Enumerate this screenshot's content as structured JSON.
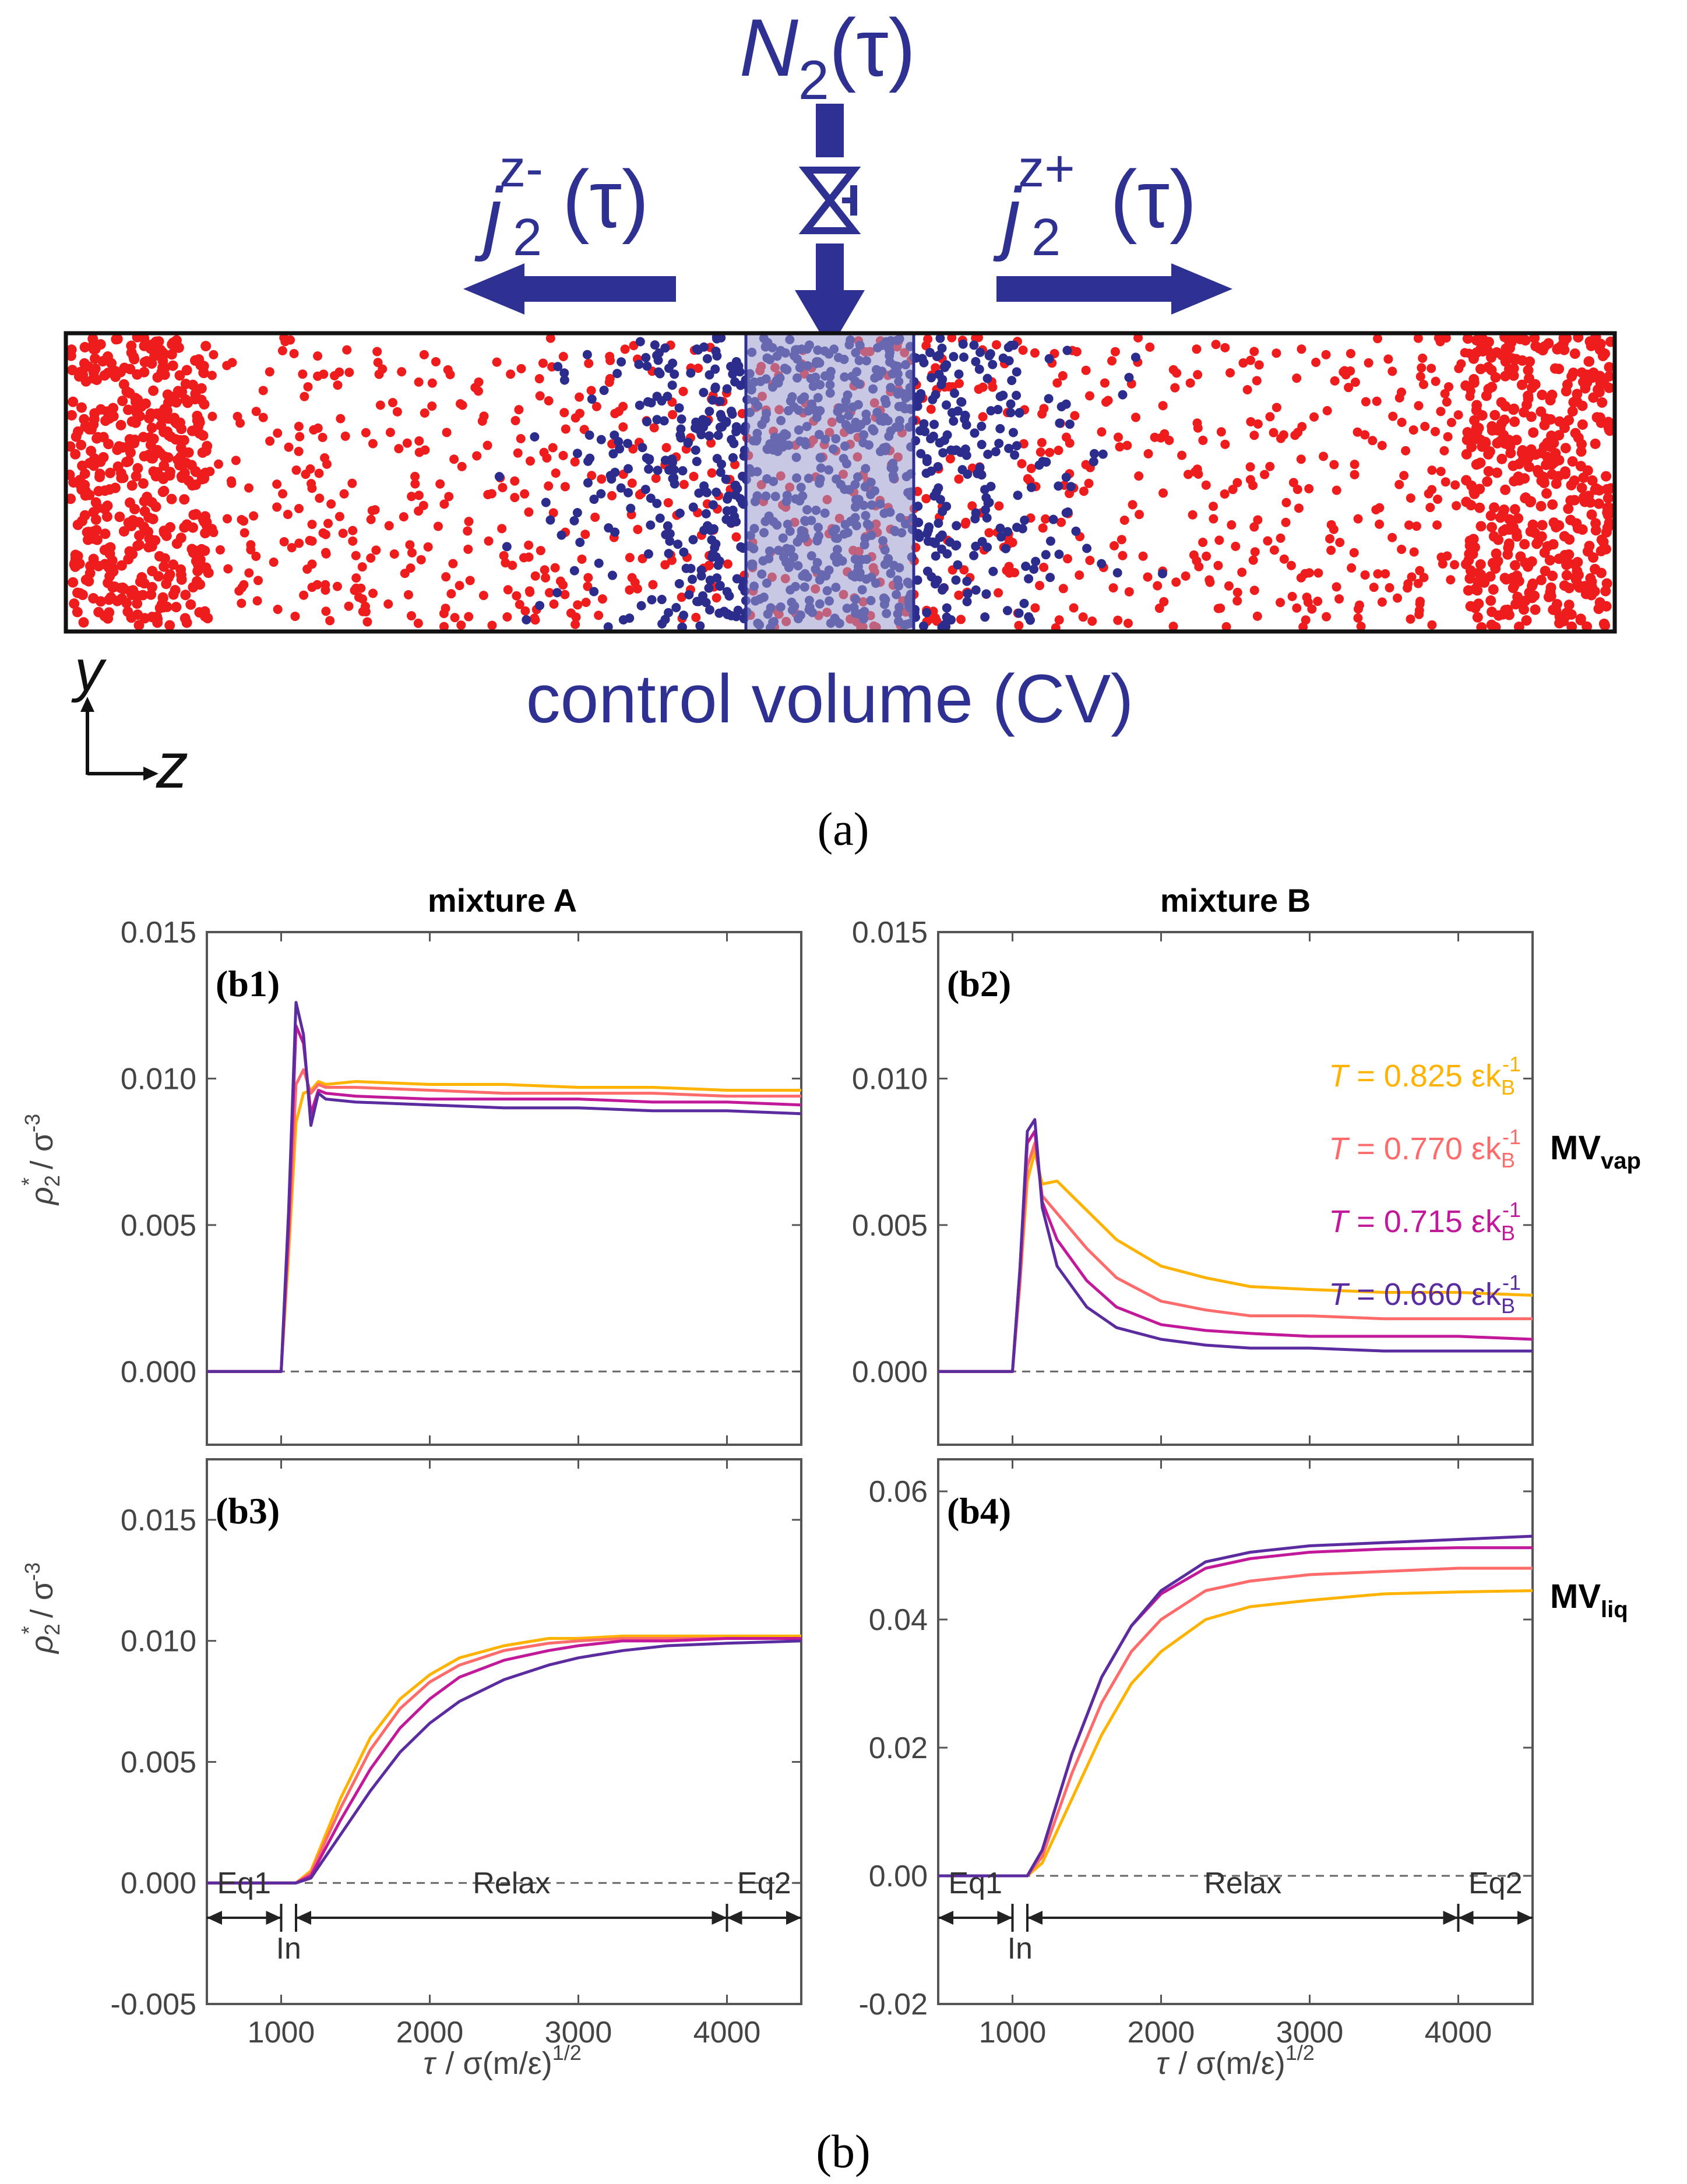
{
  "panel_a": {
    "top_label_main": "N",
    "top_label_sub": "2",
    "top_label_arg": "(τ)",
    "left_flux_main": "j",
    "left_flux_sub": "2",
    "left_flux_sup": "z-",
    "left_flux_arg": "(τ)",
    "right_flux_main": "j",
    "right_flux_sub": "2",
    "right_flux_sup": "z+",
    "right_flux_arg": "(τ)",
    "cv_label": "control volume (CV)",
    "axis_y": "y",
    "axis_z": "z",
    "caption": "(a)",
    "colors": {
      "particle_red": "#ee1c1c",
      "particle_blue": "#2c2c8c",
      "arrow_blue": "#2e3192",
      "cv_fill": "#9a9ad0"
    }
  },
  "panel_b": {
    "caption": "(b)",
    "col_headers": [
      "mixture A",
      "mixture B"
    ],
    "row_labels": [
      {
        "main": "MV",
        "sub": "vap"
      },
      {
        "main": "MV",
        "sub": "liq"
      }
    ],
    "ylabel_main": "ρ",
    "ylabel_sub": "2",
    "ylabel_star": "*",
    "ylabel_unit": "/ σ",
    "ylabel_exp": "-3",
    "xlabel_main": "τ",
    "xlabel_unit": "/ σ(m/ε)",
    "xlabel_exp": "1/2",
    "phases": {
      "eq1": "Eq1",
      "in": "In",
      "relax": "Relax",
      "eq2": "Eq2"
    }
  },
  "chart_data": [
    {
      "id": "b1",
      "label": "(b1)",
      "type": "line",
      "xlim": [
        500,
        4500
      ],
      "ylim": [
        -0.0025,
        0.015
      ],
      "xticks": [
        1000,
        2000,
        3000,
        4000
      ],
      "yticks": [
        0.0,
        0.005,
        0.01,
        0.015
      ],
      "ytick_labels": [
        "0.000",
        "0.005",
        "0.010",
        "0.015"
      ],
      "show_xtick_labels": false,
      "show_phases": false,
      "dashed_zero": true,
      "series": [
        {
          "color": "#ffb300",
          "x": [
            500,
            1000,
            1050,
            1100,
            1150,
            1200,
            1250,
            1300,
            1500,
            2000,
            2500,
            3000,
            3500,
            4000,
            4500
          ],
          "y": [
            0,
            0,
            0.004,
            0.0085,
            0.0095,
            0.0096,
            0.0099,
            0.0098,
            0.0099,
            0.0098,
            0.0098,
            0.0097,
            0.0097,
            0.0096,
            0.0096
          ]
        },
        {
          "color": "#ff6a6a",
          "x": [
            500,
            1000,
            1050,
            1100,
            1150,
            1200,
            1250,
            1300,
            1500,
            2000,
            2500,
            3000,
            3500,
            4000,
            4500
          ],
          "y": [
            0,
            0,
            0.0045,
            0.0098,
            0.0103,
            0.0095,
            0.0098,
            0.0097,
            0.0097,
            0.0096,
            0.0095,
            0.0095,
            0.0095,
            0.0094,
            0.0094
          ]
        },
        {
          "color": "#c2189a",
          "x": [
            500,
            1000,
            1050,
            1100,
            1150,
            1200,
            1250,
            1300,
            1500,
            2000,
            2500,
            3000,
            3500,
            4000,
            4500
          ],
          "y": [
            0,
            0,
            0.005,
            0.0118,
            0.0112,
            0.0088,
            0.0096,
            0.0095,
            0.0094,
            0.0093,
            0.0093,
            0.0093,
            0.0092,
            0.0092,
            0.0091
          ]
        },
        {
          "color": "#5a2ca0",
          "x": [
            500,
            1000,
            1050,
            1100,
            1150,
            1200,
            1250,
            1300,
            1500,
            2000,
            2500,
            3000,
            3500,
            4000,
            4500
          ],
          "y": [
            0,
            0,
            0.0055,
            0.0126,
            0.0115,
            0.0084,
            0.0095,
            0.0093,
            0.0092,
            0.0091,
            0.009,
            0.009,
            0.0089,
            0.0089,
            0.0088
          ]
        }
      ]
    },
    {
      "id": "b2",
      "label": "(b2)",
      "type": "line",
      "xlim": [
        500,
        4500
      ],
      "ylim": [
        -0.0025,
        0.015
      ],
      "xticks": [
        1000,
        2000,
        3000,
        4000
      ],
      "yticks": [
        0.0,
        0.005,
        0.01,
        0.015
      ],
      "ytick_labels": [
        "0.000",
        "0.005",
        "0.010",
        "0.015"
      ],
      "show_xtick_labels": false,
      "show_phases": false,
      "dashed_zero": true,
      "legend": {
        "placement": "top-right",
        "entries": [
          {
            "color": "#ffb300",
            "T": "T",
            "text": " = 0.825 εk",
            "sub": "B",
            "sup": "-1"
          },
          {
            "color": "#ff6a6a",
            "T": "T",
            "text": " = 0.770 εk",
            "sub": "B",
            "sup": "-1"
          },
          {
            "color": "#c2189a",
            "T": "T",
            "text": " = 0.715 εk",
            "sub": "B",
            "sup": "-1"
          },
          {
            "color": "#5a2ca0",
            "T": "T",
            "text": " = 0.660 εk",
            "sub": "B",
            "sup": "-1"
          }
        ]
      },
      "series": [
        {
          "color": "#ffb300",
          "x": [
            500,
            1000,
            1050,
            1100,
            1150,
            1200,
            1300,
            1500,
            1700,
            2000,
            2300,
            2600,
            3000,
            3500,
            4000,
            4500
          ],
          "y": [
            0,
            0,
            0.003,
            0.0065,
            0.0075,
            0.0064,
            0.0065,
            0.0055,
            0.0045,
            0.0036,
            0.0032,
            0.0029,
            0.0028,
            0.0027,
            0.0027,
            0.0026
          ]
        },
        {
          "color": "#ff6a6a",
          "x": [
            500,
            1000,
            1050,
            1100,
            1150,
            1200,
            1300,
            1500,
            1700,
            2000,
            2300,
            2600,
            3000,
            3500,
            4000,
            4500
          ],
          "y": [
            0,
            0,
            0.003,
            0.007,
            0.0078,
            0.006,
            0.0054,
            0.0042,
            0.0032,
            0.0024,
            0.0021,
            0.0019,
            0.0019,
            0.0018,
            0.0018,
            0.0018
          ]
        },
        {
          "color": "#c2189a",
          "x": [
            500,
            1000,
            1050,
            1100,
            1150,
            1200,
            1300,
            1500,
            1700,
            2000,
            2300,
            2600,
            3000,
            3500,
            4000,
            4500
          ],
          "y": [
            0,
            0,
            0.0035,
            0.0078,
            0.0082,
            0.0058,
            0.0045,
            0.0031,
            0.0022,
            0.0016,
            0.0014,
            0.0013,
            0.0012,
            0.0012,
            0.0012,
            0.0011
          ]
        },
        {
          "color": "#5a2ca0",
          "x": [
            500,
            1000,
            1050,
            1100,
            1150,
            1200,
            1300,
            1500,
            1700,
            2000,
            2300,
            2600,
            3000,
            3500,
            4000,
            4500
          ],
          "y": [
            0,
            0,
            0.0035,
            0.0082,
            0.0086,
            0.0056,
            0.0036,
            0.0022,
            0.0015,
            0.0011,
            0.0009,
            0.0008,
            0.0008,
            0.0007,
            0.0007,
            0.0007
          ]
        }
      ]
    },
    {
      "id": "b3",
      "label": "(b3)",
      "type": "line",
      "xlim": [
        500,
        4500
      ],
      "ylim": [
        -0.005,
        0.0175
      ],
      "xticks": [
        1000,
        2000,
        3000,
        4000
      ],
      "yticks": [
        -0.005,
        0.0,
        0.005,
        0.01,
        0.015
      ],
      "ytick_labels": [
        "-0.005",
        "0.000",
        "0.005",
        "0.010",
        "0.015"
      ],
      "show_xtick_labels": true,
      "show_phases": true,
      "dashed_zero": true,
      "series": [
        {
          "color": "#ffb300",
          "x": [
            500,
            1100,
            1200,
            1400,
            1600,
            1800,
            2000,
            2200,
            2500,
            2800,
            3000,
            3300,
            3600,
            4000,
            4500
          ],
          "y": [
            0,
            0,
            0.0005,
            0.0035,
            0.006,
            0.0076,
            0.0086,
            0.0093,
            0.0098,
            0.0101,
            0.0101,
            0.0102,
            0.0102,
            0.0102,
            0.0102
          ]
        },
        {
          "color": "#ff6a6a",
          "x": [
            500,
            1100,
            1200,
            1400,
            1600,
            1800,
            2000,
            2200,
            2500,
            2800,
            3000,
            3300,
            3600,
            4000,
            4500
          ],
          "y": [
            0,
            0,
            0.0004,
            0.0031,
            0.0055,
            0.0072,
            0.0083,
            0.009,
            0.0096,
            0.0099,
            0.01,
            0.0101,
            0.0101,
            0.0101,
            0.0101
          ]
        },
        {
          "color": "#c2189a",
          "x": [
            500,
            1100,
            1200,
            1400,
            1600,
            1800,
            2000,
            2200,
            2500,
            2800,
            3000,
            3300,
            3600,
            4000,
            4500
          ],
          "y": [
            0,
            0,
            0.0003,
            0.0026,
            0.0047,
            0.0064,
            0.0076,
            0.0085,
            0.0092,
            0.0096,
            0.0098,
            0.01,
            0.01,
            0.0101,
            0.0101
          ]
        },
        {
          "color": "#5a2ca0",
          "x": [
            500,
            1100,
            1200,
            1400,
            1600,
            1800,
            2000,
            2200,
            2500,
            2800,
            3000,
            3300,
            3600,
            4000,
            4500
          ],
          "y": [
            0,
            0,
            0.0002,
            0.002,
            0.0038,
            0.0054,
            0.0066,
            0.0075,
            0.0084,
            0.009,
            0.0093,
            0.0096,
            0.0098,
            0.0099,
            0.01
          ]
        }
      ]
    },
    {
      "id": "b4",
      "label": "(b4)",
      "type": "line",
      "xlim": [
        500,
        4500
      ],
      "ylim": [
        -0.02,
        0.065
      ],
      "xticks": [
        1000,
        2000,
        3000,
        4000
      ],
      "yticks": [
        -0.02,
        0.0,
        0.02,
        0.04,
        0.06
      ],
      "ytick_labels": [
        "-0.02",
        "0.00",
        "0.02",
        "0.04",
        "0.06"
      ],
      "show_xtick_labels": true,
      "show_phases": true,
      "dashed_zero": true,
      "series": [
        {
          "color": "#ffb300",
          "x": [
            500,
            1100,
            1200,
            1400,
            1600,
            1800,
            2000,
            2300,
            2600,
            3000,
            3500,
            4000,
            4500
          ],
          "y": [
            0,
            0,
            0.002,
            0.012,
            0.022,
            0.03,
            0.035,
            0.04,
            0.042,
            0.043,
            0.044,
            0.0443,
            0.0445
          ]
        },
        {
          "color": "#ff6a6a",
          "x": [
            500,
            1100,
            1200,
            1400,
            1600,
            1800,
            2000,
            2300,
            2600,
            3000,
            3500,
            4000,
            4500
          ],
          "y": [
            0,
            0,
            0.003,
            0.016,
            0.027,
            0.035,
            0.04,
            0.0445,
            0.046,
            0.047,
            0.0475,
            0.048,
            0.048
          ]
        },
        {
          "color": "#c2189a",
          "x": [
            500,
            1100,
            1200,
            1400,
            1600,
            1800,
            2000,
            2300,
            2600,
            3000,
            3500,
            4000,
            4500
          ],
          "y": [
            0,
            0,
            0.004,
            0.019,
            0.031,
            0.039,
            0.044,
            0.048,
            0.0495,
            0.0505,
            0.051,
            0.0512,
            0.0512
          ]
        },
        {
          "color": "#5a2ca0",
          "x": [
            500,
            1100,
            1200,
            1400,
            1600,
            1800,
            2000,
            2300,
            2600,
            3000,
            3500,
            4000,
            4500
          ],
          "y": [
            0,
            0,
            0.004,
            0.019,
            0.031,
            0.039,
            0.0445,
            0.049,
            0.0505,
            0.0515,
            0.052,
            0.0525,
            0.053
          ]
        }
      ]
    }
  ]
}
